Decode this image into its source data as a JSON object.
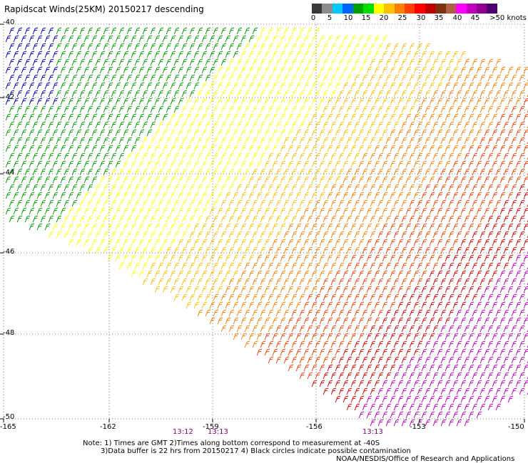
{
  "title": "Rapidscat Winds(25KM) 20150217 descending",
  "colorbar": {
    "ticks": [
      "0",
      "5",
      "10",
      "15",
      "20",
      "25",
      "30",
      "35",
      "40",
      "45",
      ">50 knots"
    ],
    "colors": [
      "#3a3a3a",
      "#8c8c8c",
      "#00c8ff",
      "#0064ff",
      "#00a000",
      "#00e000",
      "#ffff00",
      "#ffc000",
      "#ff8000",
      "#ff4000",
      "#ff0000",
      "#c00000",
      "#803010",
      "#b06040",
      "#ff00ff",
      "#c000c0",
      "#900090",
      "#500070"
    ]
  },
  "axes": {
    "latitudes": [
      "-40",
      "-42",
      "-44",
      "-46",
      "-48",
      "-50"
    ],
    "longitudes": [
      "-165",
      "-162",
      "-159",
      "-156",
      "-153",
      "-150"
    ],
    "lon_range": [
      -165,
      -150
    ],
    "lat_range": [
      -40,
      -50
    ]
  },
  "times": [
    "13:12",
    "13:13",
    "13:13"
  ],
  "notes": {
    "line1": "Note: 1) Times are GMT 2)Times along bottom correspond to measurement at -40S",
    "line2": "3)Data buffer is 22 hrs from 20150217 4) Black circles indicate possible contamination",
    "credit": "NOAA/NESDIS/Office of Research and Applications"
  }
}
